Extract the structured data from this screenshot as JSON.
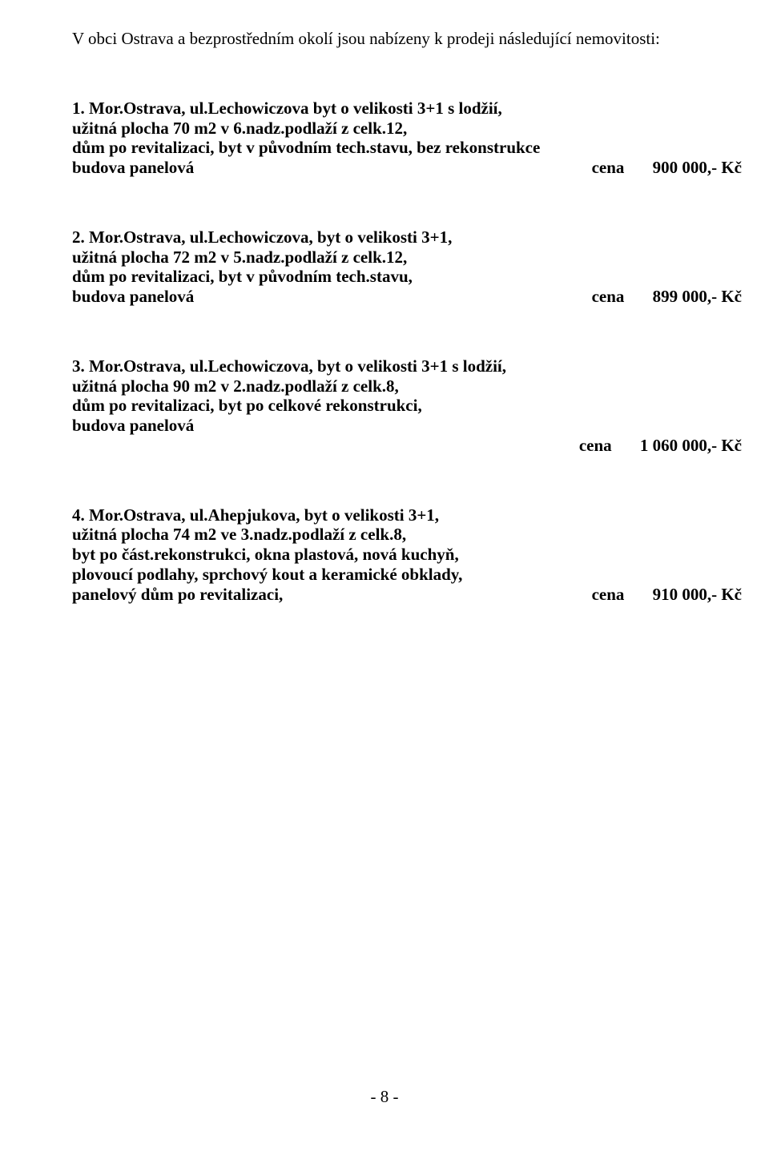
{
  "intro": "V obci Ostrava  a bezprostředním okolí  jsou nabízeny k prodeji následující nemovitosti:",
  "listings": [
    {
      "l1": "1.   Mor.Ostrava, ul.Lechowiczova   byt o velikosti 3+1 s lodžií,",
      "l2": "užitná plocha 70 m2 v 6.nadz.podlaží z celk.12,",
      "l3": "dům po revitalizaci,  byt  v původním tech.stavu, bez rekonstrukce",
      "l4": "budova panelová",
      "cena_label": "cena",
      "price": "900 000,- Kč"
    },
    {
      "l1": "2.   Mor.Ostrava, ul.Lechowiczova, byt o velikosti 3+1,",
      "l2": "užitná plocha 72 m2 v 5.nadz.podlaží z celk.12,",
      "l3": "dům po revitalizaci, byt v původním tech.stavu,",
      "l4": "budova panelová",
      "cena_label": "cena",
      "price": "899 000,- Kč"
    },
    {
      "l1": "3.   Mor.Ostrava, ul.Lechowiczova, byt o velikosti 3+1 s lodžií,",
      "l2": "užitná plocha 90 m2 v 2.nadz.podlaží z celk.8,",
      "l3": "dům po revitalizaci, byt po celkové rekonstrukci,",
      "l4": "budova panelová",
      "cena_label": "cena",
      "price": "1 060 000,- Kč"
    },
    {
      "l1": "4.   Mor.Ostrava, ul.Ahepjukova, byt o velikosti 3+1,",
      "l2": "užitná plocha 74 m2 ve 3.nadz.podlaží z celk.8,",
      "l3": "byt po část.rekonstrukci, okna plastová, nová kuchyň,",
      "l4": "plovoucí podlahy, sprchový kout a keramické obklady,",
      "l5": "panelový dům po revitalizaci,",
      "cena_label": "cena",
      "price": "910 000,- Kč"
    }
  ],
  "page_number": "- 8 -"
}
